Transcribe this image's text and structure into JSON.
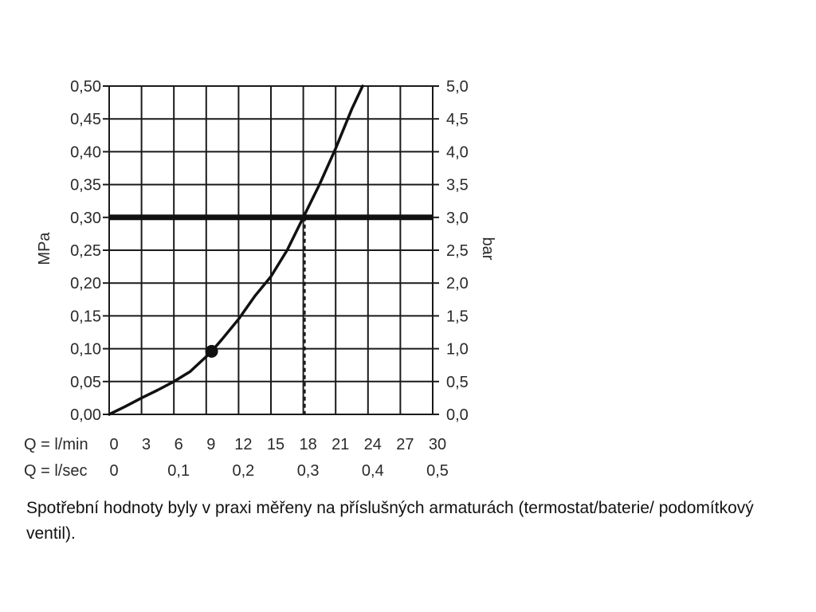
{
  "chart_data": {
    "type": "line",
    "title": "",
    "y_left": {
      "label": "MPa",
      "ticks": [
        "0,00",
        "0,05",
        "0,10",
        "0,15",
        "0,20",
        "0,25",
        "0,30",
        "0,35",
        "0,40",
        "0,45",
        "0,50"
      ],
      "range": [
        0,
        0.5
      ]
    },
    "y_right": {
      "label": "bar",
      "ticks": [
        "0,0",
        "0,5",
        "1,0",
        "1,5",
        "2,0",
        "2,5",
        "3,0",
        "3,5",
        "4,0",
        "4,5",
        "5,0"
      ],
      "range": [
        0,
        5
      ]
    },
    "x_primary": {
      "label": "Q = l/min",
      "ticks": [
        "0",
        "3",
        "6",
        "9",
        "12",
        "15",
        "18",
        "21",
        "24",
        "27",
        "30"
      ],
      "range": [
        0,
        30
      ]
    },
    "x_secondary": {
      "label": "Q = l/sec",
      "ticks": [
        "0",
        "0,1",
        "0,2",
        "0,3",
        "0,4",
        "0,5"
      ],
      "range": [
        0,
        0.5
      ]
    },
    "grid": true,
    "series": [
      {
        "x": [
          0,
          1.5,
          3,
          4.5,
          6,
          7.5,
          9,
          9.5,
          10.5,
          12,
          13.5,
          15,
          16.5,
          18,
          19.5,
          21,
          22.5,
          23.5
        ],
        "y": [
          0,
          0.012,
          0.025,
          0.037,
          0.05,
          0.065,
          0.088,
          0.096,
          0.115,
          0.145,
          0.18,
          0.21,
          0.25,
          0.3,
          0.35,
          0.405,
          0.465,
          0.5
        ]
      }
    ],
    "reference_line": {
      "y": 0.3
    },
    "marker": {
      "x": 9.5,
      "y": 0.096
    },
    "dashed_drop": {
      "x": 18,
      "y": 0.3
    }
  },
  "caption": "Spotřební hodnoty byly v praxi měřeny na příslušných armaturách (termostat/baterie/ podomítkový ventil)."
}
